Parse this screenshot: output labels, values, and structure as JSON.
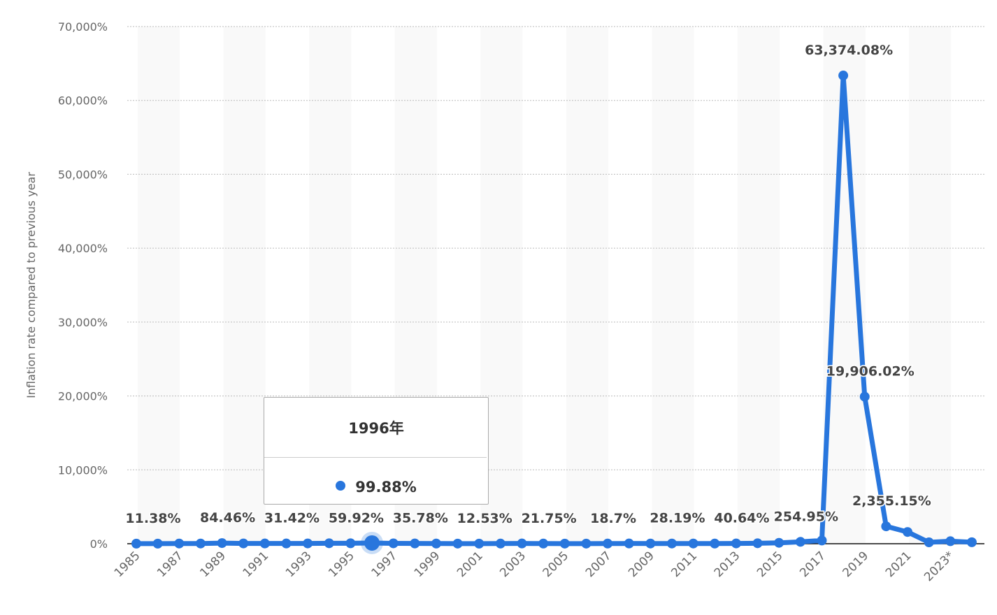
{
  "chart_data": {
    "type": "line",
    "ylabel": "Inflation rate compared to previous year",
    "xlabel": "",
    "ylim": [
      0,
      70000
    ],
    "yticks": [
      "0%",
      "10,000%",
      "20,000%",
      "30,000%",
      "40,000%",
      "50,000%",
      "60,000%",
      "70,000%"
    ],
    "ytick_values": [
      0,
      10000,
      20000,
      30000,
      40000,
      50000,
      60000,
      70000
    ],
    "xtick_labels": [
      "1985",
      "1987",
      "1989",
      "1991",
      "1993",
      "1995",
      "1997",
      "1999",
      "2001",
      "2003",
      "2005",
      "2007",
      "2009",
      "2011",
      "2013",
      "2015",
      "2017",
      "2019",
      "2021",
      "2023*"
    ],
    "grid": true,
    "line_color": "#2876dd",
    "x": [
      1985,
      1986,
      1987,
      1988,
      1989,
      1990,
      1991,
      1992,
      1993,
      1994,
      1995,
      1996,
      1997,
      1998,
      1999,
      2000,
      2001,
      2002,
      2003,
      2004,
      2005,
      2006,
      2007,
      2008,
      2009,
      2010,
      2011,
      2012,
      2013,
      2014,
      2015,
      2016,
      2017,
      2018,
      2019,
      2020,
      2021,
      2022,
      2023,
      2024
    ],
    "values": [
      11.38,
      11.5,
      28.1,
      29.5,
      84.46,
      40.7,
      34.2,
      31.42,
      38.1,
      60.8,
      59.92,
      99.88,
      50,
      35.78,
      23.6,
      16.2,
      12.53,
      22.4,
      31.1,
      21.75,
      16,
      13.7,
      18.7,
      31.4,
      27.1,
      28.19,
      26.1,
      21.1,
      40.64,
      62.2,
      121.7,
      254.95,
      438.1,
      63374.08,
      19906.02,
      2355.15,
      1588.5,
      186.5,
      337.5,
      200
    ],
    "data_labels": [
      {
        "year": 1985,
        "text": "11.38%"
      },
      {
        "year": 1989,
        "text": "84.46%"
      },
      {
        "year": 1992,
        "text": "31.42%"
      },
      {
        "year": 1995,
        "text": "59.92%"
      },
      {
        "year": 1998,
        "text": "35.78%"
      },
      {
        "year": 2001,
        "text": "12.53%"
      },
      {
        "year": 2004,
        "text": "21.75%"
      },
      {
        "year": 2007,
        "text": "18.7%"
      },
      {
        "year": 2010,
        "text": "28.19%"
      },
      {
        "year": 2013,
        "text": "40.64%"
      },
      {
        "year": 2016,
        "text": "254.95%"
      },
      {
        "year": 2018,
        "text": "63,374.08%"
      },
      {
        "year": 2019,
        "text": "19,906.02%"
      },
      {
        "year": 2020,
        "text": "2,355.15%"
      }
    ],
    "highlighted_year": 1996
  },
  "tooltip": {
    "title": "1996年",
    "value": "99.88%"
  }
}
